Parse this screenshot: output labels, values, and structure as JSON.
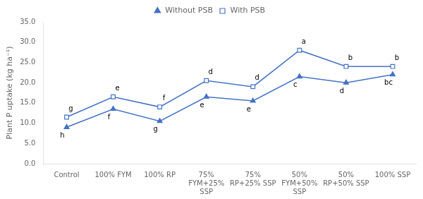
{
  "chart_data": {
    "type": "line",
    "y_label": "Plant P uptake (kg ha⁻¹)",
    "categories": [
      "Control",
      "100% FYM",
      "100% RP",
      "75%\nFYM+25%\nSSP",
      "75%\nRP+25% SSP",
      "50%\nFYM+50%\nSSP",
      "50%\nRP+50% SSP",
      "100% SSP"
    ],
    "series": [
      {
        "name": "Without PSB",
        "color": "#4472C4",
        "marker": "triangle",
        "values": [
          9.0,
          13.5,
          10.5,
          16.5,
          15.5,
          21.5,
          20.0,
          22.0
        ],
        "annotations": [
          "h",
          "f",
          "g",
          "e",
          "e",
          "c",
          "d",
          "bc"
        ]
      },
      {
        "name": "With PSB",
        "color": "#4472C4",
        "marker": "open_square",
        "values": [
          11.5,
          16.5,
          14.0,
          20.5,
          19.0,
          28.0,
          24.0,
          24.0
        ],
        "annotations": [
          "g",
          "e",
          "f",
          "d",
          "d",
          "a",
          "b",
          "b"
        ]
      }
    ],
    "ylim": [
      0,
      35.0
    ],
    "yticks": [
      {
        "value": 0.0,
        "label": "0.0"
      },
      {
        "value": 5.0,
        "label": "5.0"
      },
      {
        "value": 10.0,
        "label": "10.0"
      },
      {
        "value": 15.0,
        "label": "15.0"
      },
      {
        "value": 20.0,
        "label": "20.0"
      },
      {
        "value": 25.0,
        "label": "25.0"
      },
      {
        "value": 30.0,
        "label": "30.0"
      },
      {
        "value": 35.0,
        "label": "35.0"
      }
    ],
    "grid": false,
    "legend": "top"
  }
}
